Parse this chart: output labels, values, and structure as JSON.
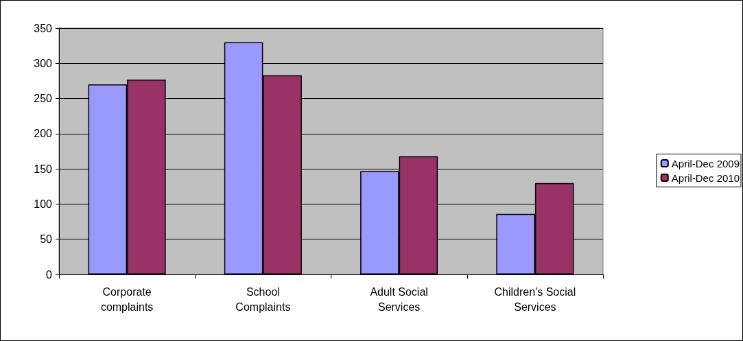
{
  "chart_data": {
    "type": "bar",
    "categories": [
      "Corporate\ncomplaints",
      "School\nComplaints",
      "Adult Social\nServices",
      "Children's Social\nServices"
    ],
    "series": [
      {
        "name": "April-Dec 2009",
        "color": "#9999ff",
        "values": [
          270,
          330,
          147,
          86
        ]
      },
      {
        "name": "April-Dec 2010",
        "color": "#993366",
        "values": [
          277,
          283,
          168,
          130
        ]
      }
    ],
    "ylim": [
      0,
      350
    ],
    "yticks": [
      0,
      50,
      100,
      150,
      200,
      250,
      300,
      350
    ],
    "grid": "y",
    "legend": "right"
  }
}
